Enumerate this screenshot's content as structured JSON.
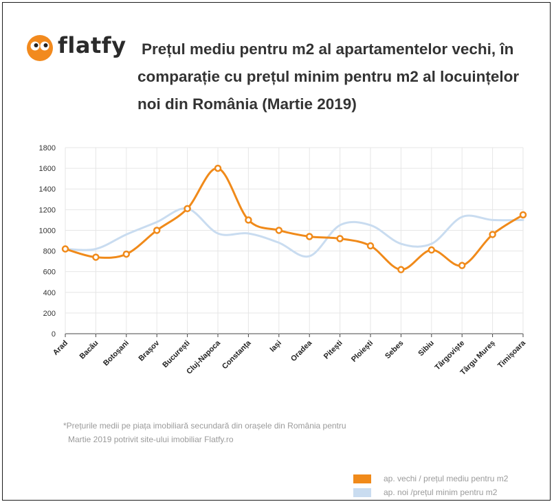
{
  "brand": {
    "name": "flatfy"
  },
  "title": {
    "line1": "Prețul mediu pentru m2 al apartamentelor vechi, în",
    "line2": "comparație cu prețul minim pentru m2 al locuințelor",
    "line3": "noi din România (Martie 2019)"
  },
  "footnote": {
    "line1": "*Prețurile medii pe piața imobiliară secundară din orașele din România pentru",
    "line2": "Martie 2019 potrivit site-ului imobiliar Flatfy.ro"
  },
  "colors": {
    "orange": "#f08a1a",
    "blue": "#c9dcf0",
    "grid": "#e6e6e6",
    "axis": "#555555"
  },
  "chart_data": {
    "type": "line",
    "categories": [
      "Arad",
      "Bacău",
      "Botoșani",
      "Brașov",
      "București",
      "Cluj-Napoca",
      "Constanța",
      "Iași",
      "Oradea",
      "Pitești",
      "Ploiești",
      "Sebes",
      "Sibiu",
      "Târgoviște",
      "Târgu Mureș",
      "Timișoara"
    ],
    "ylim": [
      0,
      1800
    ],
    "yticks": [
      0,
      200,
      400,
      600,
      800,
      1000,
      1200,
      1400,
      1600,
      1800
    ],
    "grid": true,
    "legend_position": "bottom-right",
    "series": [
      {
        "name": "ap. vechi / prețul mediu pentru m2",
        "color": "#f08a1a",
        "markers": true,
        "values": [
          820,
          740,
          770,
          1000,
          1210,
          1600,
          1100,
          1000,
          940,
          920,
          850,
          620,
          810,
          660,
          960,
          1150
        ]
      },
      {
        "name": "ap. noi /prețul minim pentru m2",
        "color": "#c9dcf0",
        "markers": false,
        "values": [
          820,
          820,
          960,
          1080,
          1210,
          970,
          970,
          880,
          750,
          1050,
          1050,
          870,
          870,
          1130,
          1100,
          1100
        ]
      }
    ]
  }
}
